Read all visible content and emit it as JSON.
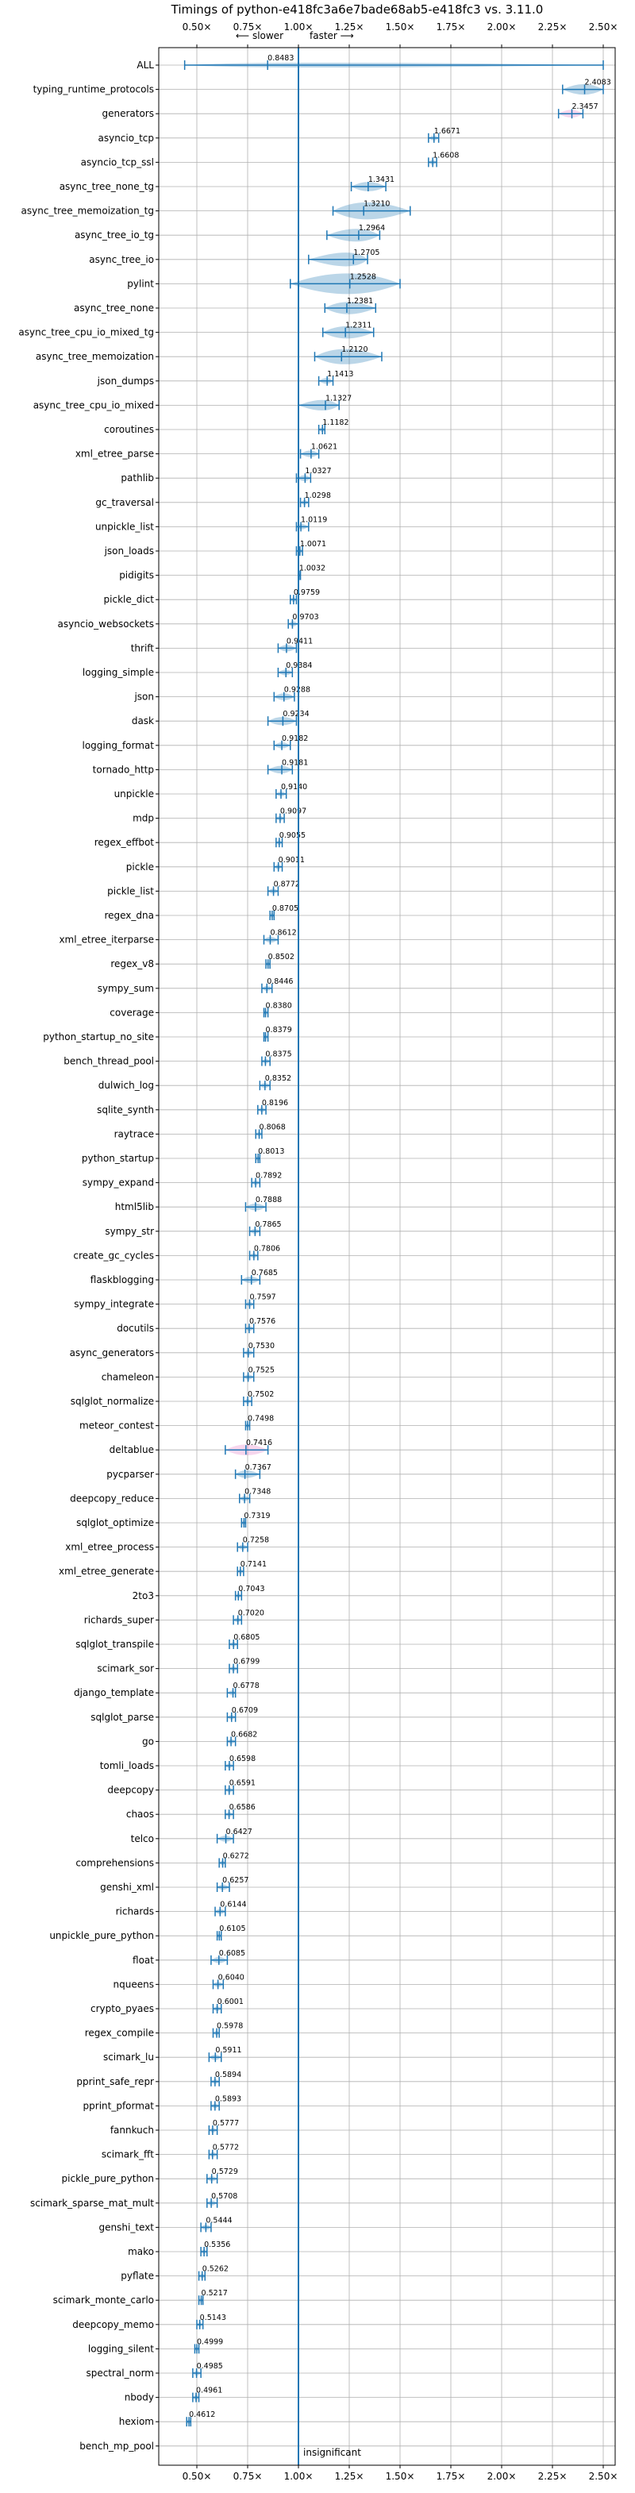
{
  "chart_data": {
    "type": "violin",
    "title": "Timings of python-e418fc3a6e7bade68ab5-e418fc3 vs. 3.11.0",
    "xlim": [
      0.35,
      2.6
    ],
    "xticks": [
      "0.50×",
      "0.75×",
      "1.00×",
      "1.25×",
      "1.50×",
      "1.75×",
      "2.00×",
      "2.25×",
      "2.50×"
    ],
    "xtick_values": [
      0.5,
      0.75,
      1.0,
      1.25,
      1.5,
      1.75,
      2.0,
      2.25,
      2.5
    ],
    "slower_label": "⟵ slower",
    "faster_label": "faster ⟶",
    "insignificant_label": "insignificant",
    "grid": true,
    "colors": {
      "violin": "#1f77b4",
      "highlight": "#e377c2",
      "grid": "#b0b0b0"
    },
    "categories": [
      "ALL",
      "typing_runtime_protocols",
      "generators",
      "asyncio_tcp",
      "asyncio_tcp_ssl",
      "async_tree_none_tg",
      "async_tree_memoization_tg",
      "async_tree_io_tg",
      "async_tree_io",
      "pylint",
      "async_tree_none",
      "async_tree_cpu_io_mixed_tg",
      "async_tree_memoization",
      "json_dumps",
      "async_tree_cpu_io_mixed",
      "coroutines",
      "xml_etree_parse",
      "pathlib",
      "gc_traversal",
      "unpickle_list",
      "json_loads",
      "pidigits",
      "pickle_dict",
      "asyncio_websockets",
      "thrift",
      "logging_simple",
      "json",
      "dask",
      "logging_format",
      "tornado_http",
      "unpickle",
      "mdp",
      "regex_effbot",
      "pickle",
      "pickle_list",
      "regex_dna",
      "xml_etree_iterparse",
      "regex_v8",
      "sympy_sum",
      "coverage",
      "python_startup_no_site",
      "bench_thread_pool",
      "dulwich_log",
      "sqlite_synth",
      "raytrace",
      "python_startup",
      "sympy_expand",
      "html5lib",
      "sympy_str",
      "create_gc_cycles",
      "flaskblogging",
      "sympy_integrate",
      "docutils",
      "async_generators",
      "chameleon",
      "sqlglot_normalize",
      "meteor_contest",
      "deltablue",
      "pycparser",
      "deepcopy_reduce",
      "sqlglot_optimize",
      "xml_etree_process",
      "xml_etree_generate",
      "2to3",
      "richards_super",
      "sqlglot_transpile",
      "scimark_sor",
      "django_template",
      "sqlglot_parse",
      "go",
      "tomli_loads",
      "deepcopy",
      "chaos",
      "telco",
      "comprehensions",
      "genshi_xml",
      "richards",
      "unpickle_pure_python",
      "float",
      "nqueens",
      "crypto_pyaes",
      "regex_compile",
      "scimark_lu",
      "pprint_safe_repr",
      "pprint_pformat",
      "fannkuch",
      "scimark_fft",
      "pickle_pure_python",
      "scimark_sparse_mat_mult",
      "genshi_text",
      "mako",
      "pyflate",
      "scimark_monte_carlo",
      "deepcopy_memo",
      "logging_silent",
      "spectral_norm",
      "nbody",
      "hexiom",
      "bench_mp_pool"
    ],
    "values": [
      0.8483,
      2.4083,
      2.3457,
      1.6671,
      1.6608,
      1.3431,
      1.321,
      1.2964,
      1.2705,
      1.2528,
      1.2381,
      1.2311,
      1.212,
      1.1413,
      1.1327,
      1.1182,
      1.0621,
      1.0327,
      1.0298,
      1.0119,
      1.0071,
      1.0032,
      0.9759,
      0.9703,
      0.9411,
      0.9384,
      0.9288,
      0.9234,
      0.9182,
      0.9181,
      0.914,
      0.9097,
      0.9055,
      0.9011,
      0.8772,
      0.8705,
      0.8612,
      0.8502,
      0.8446,
      0.838,
      0.8379,
      0.8375,
      0.8352,
      0.8196,
      0.8068,
      0.8013,
      0.7892,
      0.7888,
      0.7865,
      0.7806,
      0.7685,
      0.7597,
      0.7576,
      0.753,
      0.7525,
      0.7502,
      0.7498,
      0.7416,
      0.7367,
      0.7348,
      0.7319,
      0.7258,
      0.7141,
      0.7043,
      0.702,
      0.6805,
      0.6799,
      0.6778,
      0.6709,
      0.6682,
      0.6598,
      0.6591,
      0.6586,
      0.6427,
      0.6272,
      0.6257,
      0.6144,
      0.6105,
      0.6085,
      0.604,
      0.6001,
      0.5978,
      0.5911,
      0.5894,
      0.5893,
      0.5777,
      0.5772,
      0.5729,
      0.5708,
      0.5444,
      0.5356,
      0.5262,
      0.5217,
      0.5143,
      0.4999,
      0.4985,
      0.4961,
      0.4612,
      null
    ],
    "labels": [
      "0.8483",
      "2.4083",
      "2.3457",
      "1.6671",
      "1.6608",
      "1.3431",
      "1.3210",
      "1.2964",
      "1.2705",
      "1.2528",
      "1.2381",
      "1.2311",
      "1.2120",
      "1.1413",
      "1.1327",
      "1.1182",
      "1.0621",
      "1.0327",
      "1.0298",
      "1.0119",
      "1.0071",
      "1.0032",
      "0.9759",
      "0.9703",
      "0.9411",
      "0.9384",
      "0.9288",
      "0.9234",
      "0.9182",
      "0.9181",
      "0.9140",
      "0.9097",
      "0.9055",
      "0.9011",
      "0.8772",
      "0.8705",
      "0.8612",
      "0.8502",
      "0.8446",
      "0.8380",
      "0.8379",
      "0.8375",
      "0.8352",
      "0.8196",
      "0.8068",
      "0.8013",
      "0.7892",
      "0.7888",
      "0.7865",
      "0.7806",
      "0.7685",
      "0.7597",
      "0.7576",
      "0.7530",
      "0.7525",
      "0.7502",
      "0.7498",
      "0.7416",
      "0.7367",
      "0.7348",
      "0.7319",
      "0.7258",
      "0.7141",
      "0.7043",
      "0.7020",
      "0.6805",
      "0.6799",
      "0.6778",
      "0.6709",
      "0.6682",
      "0.6598",
      "0.6591",
      "0.6586",
      "0.6427",
      "0.6272",
      "0.6257",
      "0.6144",
      "0.6105",
      "0.6085",
      "0.6040",
      "0.6001",
      "0.5978",
      "0.5911",
      "0.5894",
      "0.5893",
      "0.5777",
      "0.5772",
      "0.5729",
      "0.5708",
      "0.5444",
      "0.5356",
      "0.5262",
      "0.5217",
      "0.5143",
      "0.4999",
      "0.4985",
      "0.4961",
      "0.4612",
      ""
    ],
    "ranges": [
      [
        0.44,
        2.5
      ],
      [
        2.3,
        2.5
      ],
      [
        2.28,
        2.4
      ],
      [
        1.64,
        1.69
      ],
      [
        1.64,
        1.68
      ],
      [
        1.26,
        1.43
      ],
      [
        1.17,
        1.55
      ],
      [
        1.14,
        1.4
      ],
      [
        1.05,
        1.34
      ],
      [
        0.96,
        1.5
      ],
      [
        1.13,
        1.38
      ],
      [
        1.12,
        1.37
      ],
      [
        1.08,
        1.41
      ],
      [
        1.1,
        1.17
      ],
      [
        1.0,
        1.2
      ],
      [
        1.1,
        1.13
      ],
      [
        1.01,
        1.1
      ],
      [
        0.99,
        1.06
      ],
      [
        1.01,
        1.05
      ],
      [
        0.99,
        1.05
      ],
      [
        0.99,
        1.02
      ],
      [
        1.0,
        1.01
      ],
      [
        0.96,
        0.99
      ],
      [
        0.95,
        1.0
      ],
      [
        0.9,
        0.99
      ],
      [
        0.9,
        0.97
      ],
      [
        0.88,
        0.98
      ],
      [
        0.85,
        0.99
      ],
      [
        0.88,
        0.96
      ],
      [
        0.85,
        0.97
      ],
      [
        0.89,
        0.94
      ],
      [
        0.89,
        0.93
      ],
      [
        0.89,
        0.92
      ],
      [
        0.88,
        0.92
      ],
      [
        0.85,
        0.9
      ],
      [
        0.86,
        0.88
      ],
      [
        0.83,
        0.9
      ],
      [
        0.84,
        0.86
      ],
      [
        0.82,
        0.87
      ],
      [
        0.83,
        0.85
      ],
      [
        0.83,
        0.85
      ],
      [
        0.82,
        0.86
      ],
      [
        0.81,
        0.86
      ],
      [
        0.8,
        0.84
      ],
      [
        0.79,
        0.82
      ],
      [
        0.79,
        0.81
      ],
      [
        0.77,
        0.81
      ],
      [
        0.74,
        0.84
      ],
      [
        0.76,
        0.81
      ],
      [
        0.76,
        0.8
      ],
      [
        0.72,
        0.81
      ],
      [
        0.74,
        0.78
      ],
      [
        0.74,
        0.78
      ],
      [
        0.73,
        0.78
      ],
      [
        0.73,
        0.78
      ],
      [
        0.73,
        0.77
      ],
      [
        0.74,
        0.76
      ],
      [
        0.64,
        0.85
      ],
      [
        0.69,
        0.81
      ],
      [
        0.71,
        0.76
      ],
      [
        0.72,
        0.74
      ],
      [
        0.7,
        0.75
      ],
      [
        0.7,
        0.73
      ],
      [
        0.69,
        0.72
      ],
      [
        0.68,
        0.72
      ],
      [
        0.66,
        0.7
      ],
      [
        0.66,
        0.7
      ],
      [
        0.65,
        0.69
      ],
      [
        0.65,
        0.69
      ],
      [
        0.65,
        0.69
      ],
      [
        0.64,
        0.68
      ],
      [
        0.64,
        0.68
      ],
      [
        0.64,
        0.68
      ],
      [
        0.6,
        0.68
      ],
      [
        0.61,
        0.64
      ],
      [
        0.6,
        0.66
      ],
      [
        0.59,
        0.64
      ],
      [
        0.6,
        0.62
      ],
      [
        0.57,
        0.65
      ],
      [
        0.58,
        0.63
      ],
      [
        0.58,
        0.62
      ],
      [
        0.58,
        0.61
      ],
      [
        0.56,
        0.62
      ],
      [
        0.57,
        0.61
      ],
      [
        0.57,
        0.61
      ],
      [
        0.56,
        0.6
      ],
      [
        0.56,
        0.6
      ],
      [
        0.55,
        0.6
      ],
      [
        0.55,
        0.6
      ],
      [
        0.52,
        0.57
      ],
      [
        0.52,
        0.55
      ],
      [
        0.51,
        0.54
      ],
      [
        0.51,
        0.53
      ],
      [
        0.5,
        0.53
      ],
      [
        0.49,
        0.51
      ],
      [
        0.48,
        0.52
      ],
      [
        0.48,
        0.51
      ],
      [
        0.45,
        0.47
      ],
      null
    ],
    "highlighted": [
      "generators",
      "deltablue"
    ],
    "insignificant": [
      "bench_mp_pool"
    ]
  }
}
